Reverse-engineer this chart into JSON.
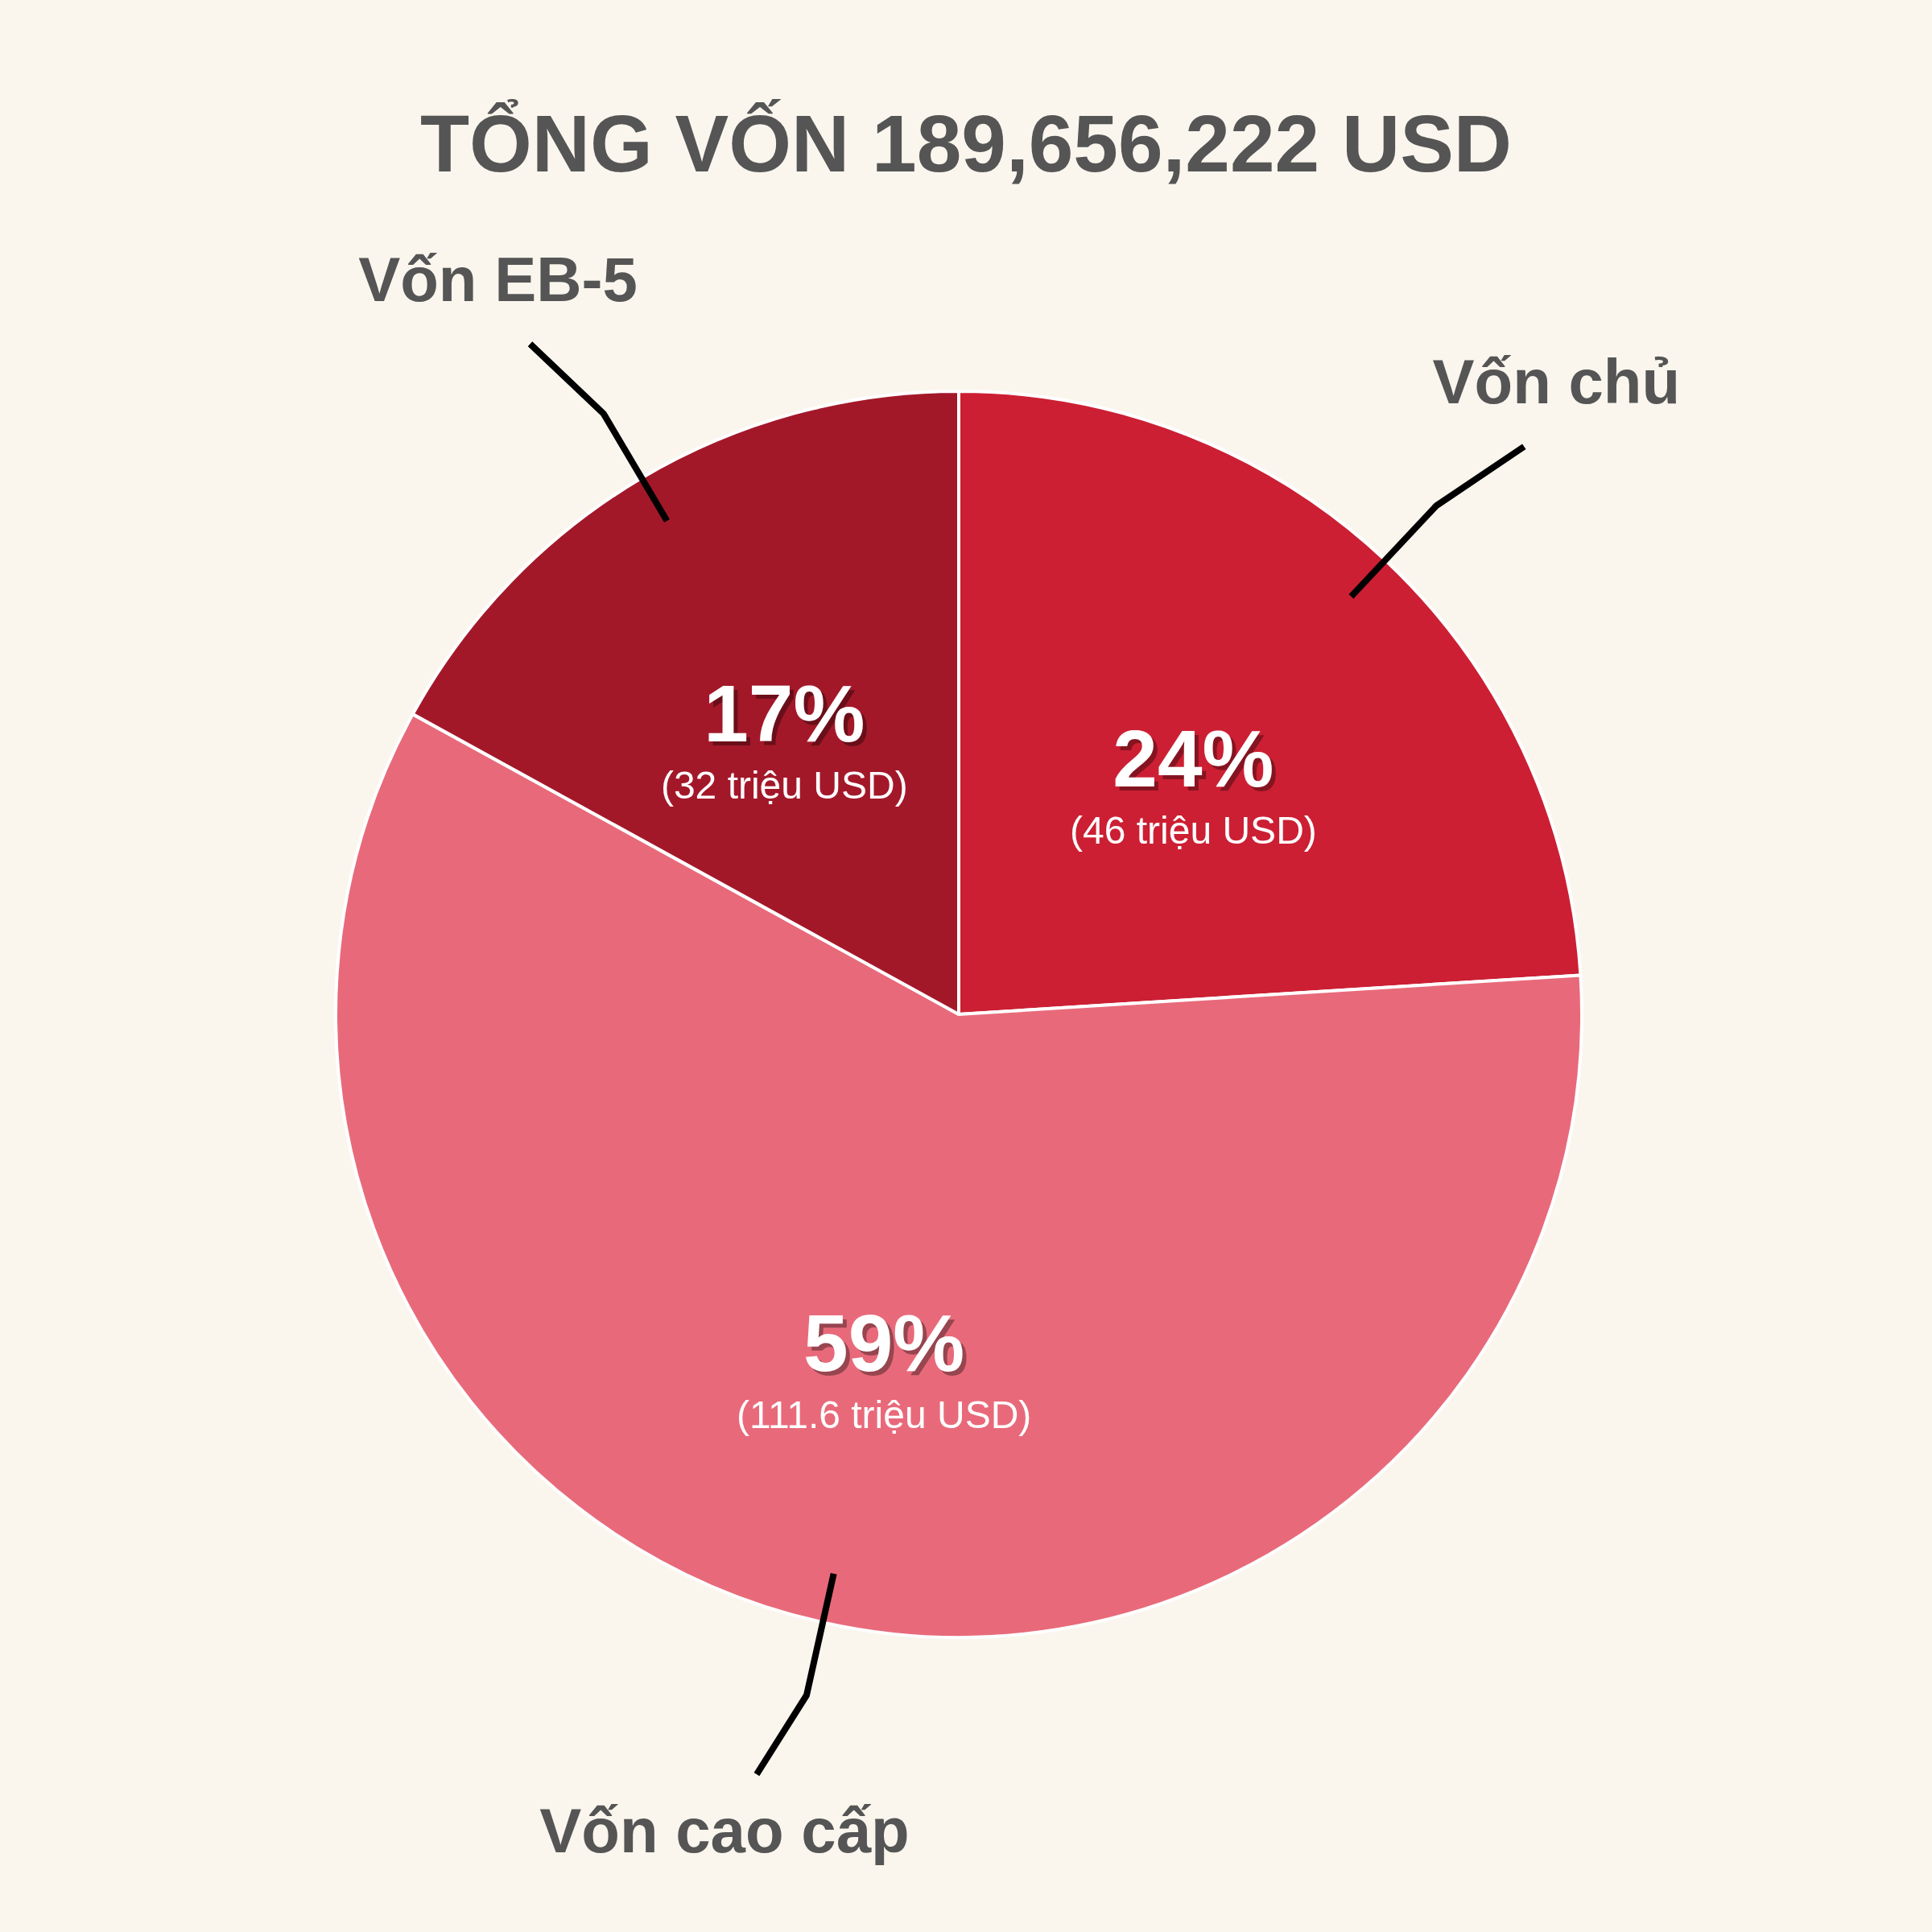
{
  "chart_data": {
    "type": "pie",
    "title": "TỔNG VỐN 189,656,222 USD",
    "categories": [
      "Vốn chủ",
      "Vốn cao cấp",
      "Vốn EB-5"
    ],
    "values": [
      24,
      59,
      17
    ],
    "colors": [
      "#cc1f33",
      "#e86a7a",
      "#a31829"
    ],
    "value_labels": [
      "24%",
      "59%",
      "17%"
    ],
    "annotations": [
      {
        "text": "(46 triệu USD)",
        "x": "Vốn chủ"
      },
      {
        "text": "(111.6 triệu USD)",
        "x": "Vốn cao cấp"
      },
      {
        "text": "(32 triệu USD)",
        "x": "Vốn EB-5"
      }
    ],
    "legend": false
  }
}
